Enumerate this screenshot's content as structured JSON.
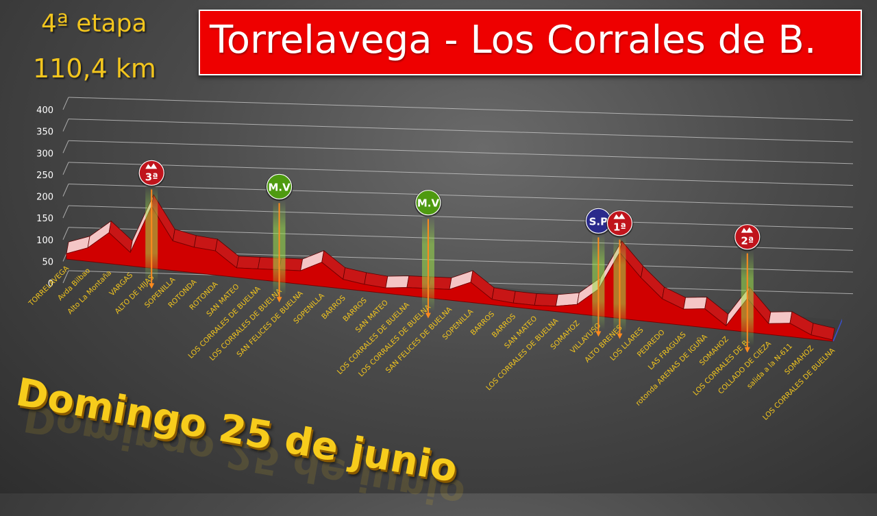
{
  "header": {
    "title": "Torrelavega - Los Corrales de B.",
    "stage": "4ª etapa",
    "distance": "110,4 km",
    "date": "Domingo 25 de junio"
  },
  "colors": {
    "profile_fill": "#d00000",
    "profile_dark": "#8a0000",
    "label": "#f2c51e",
    "badge_red": "#c0141c",
    "badge_green": "#4e9a10",
    "badge_blue": "#2a2a8c",
    "marker_line": "#ff8a1e"
  },
  "chart_data": {
    "type": "area",
    "ylim": [
      0,
      400
    ],
    "yticks": [
      "0",
      "50",
      "100",
      "150",
      "200",
      "250",
      "300",
      "350",
      "400"
    ],
    "grid": true,
    "points": [
      {
        "label": "TORRELAVEGA",
        "elevation": 20
      },
      {
        "label": "Avda Bilbao",
        "elevation": 50
      },
      {
        "label": "Alto La Montaña",
        "elevation": 115
      },
      {
        "label": "VARGAS",
        "elevation": 50
      },
      {
        "label": "ALTO DE HIJAS",
        "elevation": 230
      },
      {
        "label": "SOPENILLA",
        "elevation": 110
      },
      {
        "label": "ROTONDA",
        "elevation": 95
      },
      {
        "label": "ROTONDA",
        "elevation": 90
      },
      {
        "label": "SAN MATEO",
        "elevation": 35
      },
      {
        "label": "LOS CORRALES DE BUELNA",
        "elevation": 40
      },
      {
        "label": "LOS CORRALES DE BUELNA",
        "elevation": 45
      },
      {
        "label": "SAN FELICES DE BUELNA",
        "elevation": 50
      },
      {
        "label": "SOPENILLA",
        "elevation": 90
      },
      {
        "label": "BARROS",
        "elevation": 35
      },
      {
        "label": "BARROS",
        "elevation": 25
      },
      {
        "label": "SAN MATEO",
        "elevation": 20
      },
      {
        "label": "LOS CORRALES DE BUELNA",
        "elevation": 30
      },
      {
        "label": "LOS CORRALES DE BUELNA",
        "elevation": 35
      },
      {
        "label": "SAN FELICES DE BUELNA",
        "elevation": 40
      },
      {
        "label": "SOPENILLA",
        "elevation": 75
      },
      {
        "label": "BARROS",
        "elevation": 20
      },
      {
        "label": "BARROS",
        "elevation": 15
      },
      {
        "label": "SAN MATEO",
        "elevation": 15
      },
      {
        "label": "LOS CORRALES DE BUELNA",
        "elevation": 20
      },
      {
        "label": "SOMAHOZ",
        "elevation": 35
      },
      {
        "label": "VILLAYUSO",
        "elevation": 100
      },
      {
        "label": "ALTO BRENES",
        "elevation": 245
      },
      {
        "label": "LOS LLARES",
        "elevation": 160
      },
      {
        "label": "PEDREDO",
        "elevation": 90
      },
      {
        "label": "LAS FRAGUAS",
        "elevation": 60
      },
      {
        "label": "rotonda ARENAS DE IGUÑA",
        "elevation": 70
      },
      {
        "label": "SOMAHOZ",
        "elevation": 15
      },
      {
        "label": "LOS CORRALES DE B.",
        "elevation": 125
      },
      {
        "label": "COLLADO DE CIEZA",
        "elevation": 40
      },
      {
        "label": "salida a la N-611",
        "elevation": 50
      },
      {
        "label": "SOMAHOZ",
        "elevation": 15
      },
      {
        "label": "LOS CORRALES DE BUELNA",
        "elevation": 5
      }
    ],
    "markers": [
      {
        "label": "3ª",
        "point_index": 4,
        "kind": "climb"
      },
      {
        "label": "M.V",
        "point_index": 10,
        "kind": "sprint"
      },
      {
        "label": "M.V",
        "point_index": 17,
        "kind": "sprint"
      },
      {
        "label": "S.P",
        "point_index": 25,
        "kind": "special"
      },
      {
        "label": "1ª",
        "point_index": 26,
        "kind": "climb"
      },
      {
        "label": "2ª",
        "point_index": 32,
        "kind": "climb"
      }
    ]
  }
}
